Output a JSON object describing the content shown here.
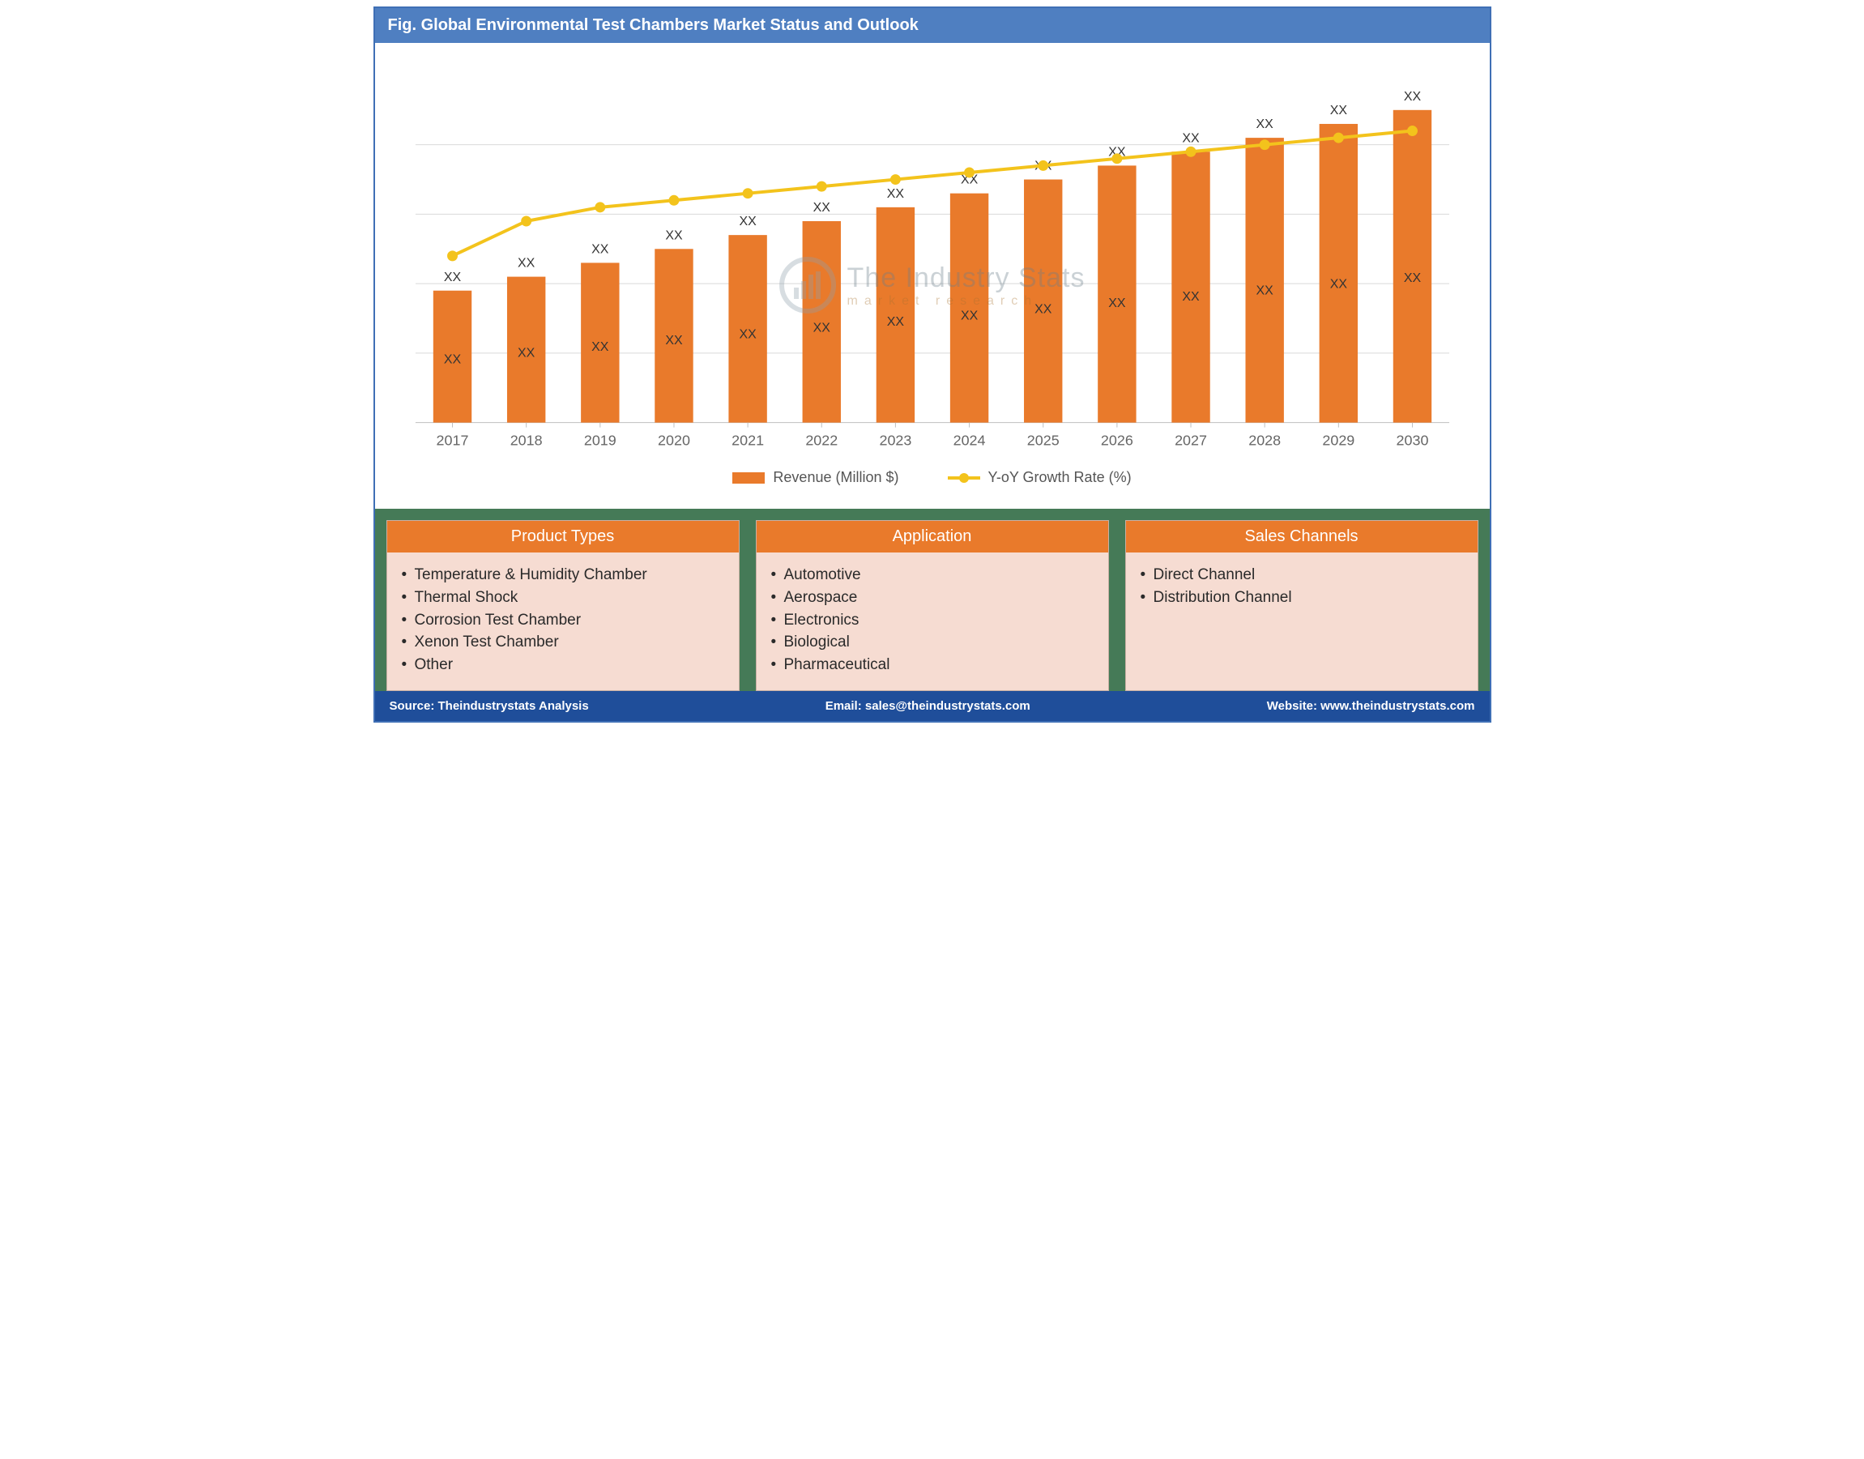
{
  "title_bar": "Fig. Global Environmental Test Chambers Market Status and Outlook",
  "chart": {
    "type": "bar+line",
    "categories": [
      "2017",
      "2018",
      "2019",
      "2020",
      "2021",
      "2022",
      "2023",
      "2024",
      "2025",
      "2026",
      "2027",
      "2028",
      "2029",
      "2030"
    ],
    "bar_values": [
      38,
      42,
      46,
      50,
      54,
      58,
      62,
      66,
      70,
      74,
      78,
      82,
      86,
      90
    ],
    "bar_inner_labels": [
      "XX",
      "XX",
      "XX",
      "XX",
      "XX",
      "XX",
      "XX",
      "XX",
      "XX",
      "XX",
      "XX",
      "XX",
      "XX",
      "XX"
    ],
    "bar_top_labels": [
      "XX",
      "XX",
      "XX",
      "XX",
      "XX",
      "XX",
      "XX",
      "XX",
      "XX",
      "XX",
      "XX",
      "XX",
      "XX",
      "XX"
    ],
    "line_values": [
      48,
      58,
      62,
      64,
      66,
      68,
      70,
      72,
      74,
      76,
      78,
      80,
      82,
      84
    ],
    "bar_color": "#e97a2b",
    "line_color": "#f3c31c",
    "marker_color": "#f3c31c",
    "grid_color": "#d9d9d9",
    "axis_color": "#bfbfbf",
    "background_color": "#ffffff",
    "text_color": "#666666",
    "label_color": "#333333",
    "ylim": [
      0,
      100
    ],
    "bar_width_ratio": 0.52,
    "line_width": 4,
    "marker_radius": 6,
    "category_fontsize": 18,
    "value_label_fontsize": 16,
    "watermark_main": "The Industry Stats",
    "watermark_sub": "market   research"
  },
  "legend": {
    "bar_label": "Revenue (Million $)",
    "line_label": "Y-oY Growth Rate (%)"
  },
  "panels": [
    {
      "title": "Product Types",
      "items": [
        "Temperature & Humidity Chamber",
        "Thermal Shock",
        "Corrosion Test Chamber",
        "Xenon Test Chamber",
        "Other"
      ]
    },
    {
      "title": "Application",
      "items": [
        "Automotive",
        "Aerospace",
        "Electronics",
        "Biological",
        "Pharmaceutical"
      ]
    },
    {
      "title": "Sales Channels",
      "items": [
        "Direct Channel",
        "Distribution Channel"
      ]
    }
  ],
  "footer": {
    "source": "Source: Theindustrystats Analysis",
    "email": "Email: sales@theindustrystats.com",
    "website": "Website: www.theindustrystats.com"
  },
  "colors": {
    "title_bar_bg": "#4f7fc1",
    "container_border": "#3f6fb5",
    "panels_bg": "#457a57",
    "panel_header_bg": "#e97a2b",
    "panel_body_bg": "#f6dcd2",
    "footer_bg": "#1f4e9a"
  }
}
